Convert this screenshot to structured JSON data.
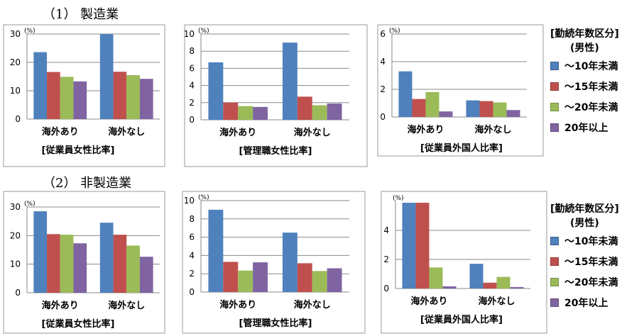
{
  "sections": [
    {
      "title": "（1） 製造業"
    },
    {
      "title": "（2） 非製造業"
    }
  ],
  "legend": {
    "title_line1": "[勤続年数区分]",
    "title_line2": "(男性)",
    "items": [
      {
        "label": "～10年未満",
        "color": "#4f81bd"
      },
      {
        "label": "～15年未満",
        "color": "#c0504d"
      },
      {
        "label": "～20年未満",
        "color": "#9bbb59"
      },
      {
        "label": "20年以上",
        "color": "#8064a2"
      }
    ]
  },
  "chart_data": [
    {
      "type": "bar",
      "section": "（1） 製造業",
      "title": "",
      "unit": "(%)",
      "xlabel": "[従業員女性比率]",
      "categories": [
        "海外あり",
        "海外なし"
      ],
      "ylim": [
        0,
        30
      ],
      "yticks": [
        0,
        10,
        20,
        30
      ],
      "grid": true,
      "series": [
        {
          "name": "～10年未満",
          "values": [
            23.6,
            30.0
          ]
        },
        {
          "name": "～15年未満",
          "values": [
            16.6,
            16.7
          ]
        },
        {
          "name": "～20年未満",
          "values": [
            14.9,
            15.5
          ]
        },
        {
          "name": "20年以上",
          "values": [
            13.3,
            14.2
          ]
        }
      ]
    },
    {
      "type": "bar",
      "section": "（1） 製造業",
      "title": "",
      "unit": "(%)",
      "xlabel": "[管理職女性比率]",
      "categories": [
        "海外あり",
        "海外なし"
      ],
      "ylim": [
        0,
        10
      ],
      "yticks": [
        0,
        2,
        4,
        6,
        8,
        10
      ],
      "grid": true,
      "series": [
        {
          "name": "～10年未満",
          "values": [
            6.7,
            9.0
          ]
        },
        {
          "name": "～15年未満",
          "values": [
            2.0,
            2.7
          ]
        },
        {
          "name": "～20年未満",
          "values": [
            1.6,
            1.7
          ]
        },
        {
          "name": "20年以上",
          "values": [
            1.5,
            1.9
          ]
        }
      ]
    },
    {
      "type": "bar",
      "section": "（1） 製造業",
      "title": "",
      "unit": "(%)",
      "xlabel": "[従業員外国人比率]",
      "categories": [
        "海外あり",
        "海外なし"
      ],
      "ylim": [
        0,
        6
      ],
      "yticks": [
        0,
        2,
        4,
        6
      ],
      "grid": true,
      "series": [
        {
          "name": "～10年未満",
          "values": [
            3.3,
            1.2
          ]
        },
        {
          "name": "～15年未満",
          "values": [
            1.3,
            1.15
          ]
        },
        {
          "name": "～20年未満",
          "values": [
            1.8,
            1.05
          ]
        },
        {
          "name": "20年以上",
          "values": [
            0.4,
            0.5
          ]
        }
      ]
    },
    {
      "type": "bar",
      "section": "（2） 非製造業",
      "title": "",
      "unit": "(%)",
      "xlabel": "[従業員女性比率]",
      "categories": [
        "海外あり",
        "海外なし"
      ],
      "ylim": [
        0,
        30
      ],
      "yticks": [
        0,
        10,
        20,
        30
      ],
      "grid": true,
      "series": [
        {
          "name": "～10年未満",
          "values": [
            28.5,
            24.5
          ]
        },
        {
          "name": "～15年未満",
          "values": [
            20.5,
            20.3
          ]
        },
        {
          "name": "～20年未満",
          "values": [
            20.3,
            16.5
          ]
        },
        {
          "name": "20年以上",
          "values": [
            17.3,
            12.6
          ]
        }
      ]
    },
    {
      "type": "bar",
      "section": "（2） 非製造業",
      "title": "",
      "unit": "(%)",
      "xlabel": "[管理職女性比率]",
      "categories": [
        "海外あり",
        "海外なし"
      ],
      "ylim": [
        0,
        10
      ],
      "yticks": [
        0,
        2,
        4,
        6,
        8,
        10
      ],
      "grid": true,
      "series": [
        {
          "name": "～10年未満",
          "values": [
            9.0,
            6.5
          ]
        },
        {
          "name": "～15年未満",
          "values": [
            3.3,
            3.15
          ]
        },
        {
          "name": "～20年未満",
          "values": [
            2.35,
            2.3
          ]
        },
        {
          "name": "20年以上",
          "values": [
            3.25,
            2.6
          ]
        }
      ]
    },
    {
      "type": "bar",
      "section": "（2） 非製造業",
      "title": "",
      "unit": "(%)",
      "xlabel": "[従業員外国人比率]",
      "categories": [
        "海外あり",
        "海外なし"
      ],
      "ylim": [
        0,
        6
      ],
      "yticks": [
        0,
        2,
        4
      ],
      "grid": true,
      "series": [
        {
          "name": "～10年未満",
          "values": [
            5.9,
            1.7
          ]
        },
        {
          "name": "～15年未満",
          "values": [
            5.9,
            0.4
          ]
        },
        {
          "name": "～20年未満",
          "values": [
            1.45,
            0.8
          ]
        },
        {
          "name": "20年以上",
          "values": [
            0.15,
            0.1
          ]
        }
      ]
    }
  ]
}
